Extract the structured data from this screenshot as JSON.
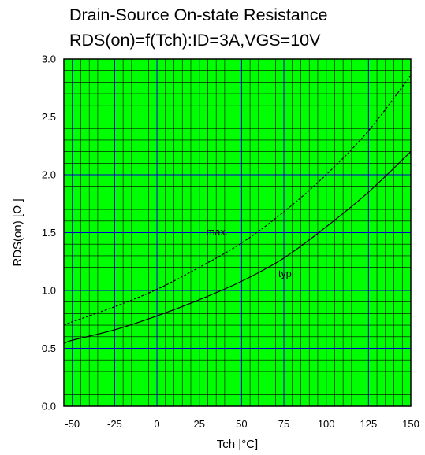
{
  "chart_data": {
    "type": "line",
    "title": "Drain-Source On-state Resistance",
    "subtitle": "RDS(on)=f(Tch):ID=3A,VGS=10V",
    "xlabel": "Tch |°C]",
    "ylabel": "RDS(on) [Ω ]",
    "xlim": [
      -55,
      150
    ],
    "ylim": [
      0.0,
      3.0
    ],
    "x_ticks": [
      -50,
      -25,
      0,
      25,
      50,
      75,
      100,
      125,
      150
    ],
    "x_tick_labels": [
      "-50",
      "-25",
      "0",
      "25",
      "50",
      "75",
      "100",
      "125",
      "150"
    ],
    "y_ticks": [
      0.0,
      0.5,
      1.0,
      1.5,
      2.0,
      2.5,
      3.0
    ],
    "y_tick_labels": [
      "0.0",
      "0.5",
      "1.0",
      "1.5",
      "2.0",
      "2.5",
      "3.0"
    ],
    "grid": true,
    "colors": {
      "background": "#00ff00",
      "major_grid": "#0000cc",
      "minor_grid": "#000000",
      "line": "#000000"
    },
    "series": [
      {
        "name": "max.",
        "style": "dashed",
        "x": [
          -55,
          -50,
          -25,
          0,
          25,
          50,
          75,
          100,
          125,
          150
        ],
        "y": [
          0.7,
          0.73,
          0.86,
          1.01,
          1.2,
          1.41,
          1.68,
          2.0,
          2.38,
          2.86
        ]
      },
      {
        "name": "typ.",
        "style": "solid",
        "x": [
          -55,
          -50,
          -25,
          0,
          25,
          50,
          75,
          100,
          125,
          150
        ],
        "y": [
          0.54,
          0.57,
          0.66,
          0.78,
          0.92,
          1.08,
          1.28,
          1.55,
          1.85,
          2.2
        ]
      }
    ]
  }
}
